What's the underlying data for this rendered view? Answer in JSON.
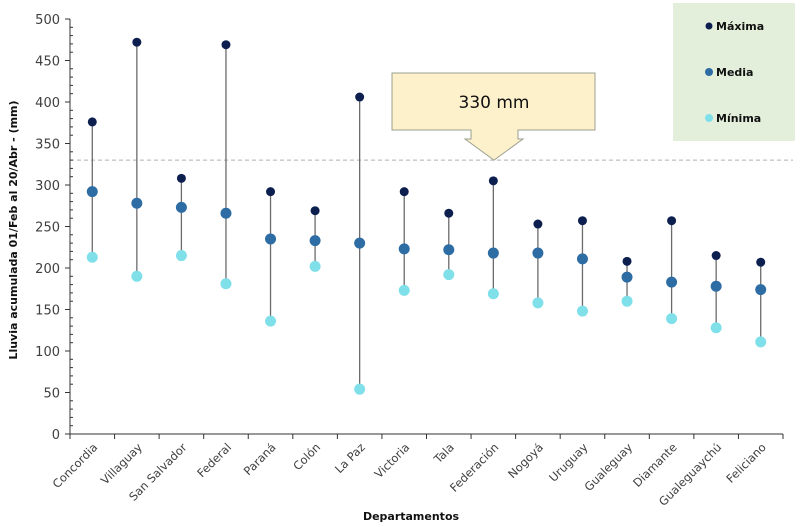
{
  "chart_data": {
    "type": "scatter",
    "subtype": "high-low-dot",
    "title": "",
    "xlabel": "Departamentos",
    "ylabel": "Lluvia acumulada 01/Feb al 20/Abr - (mm)",
    "ylim": [
      0,
      500
    ],
    "yticks": [
      0,
      50,
      100,
      150,
      200,
      250,
      300,
      350,
      400,
      450,
      500
    ],
    "grid": false,
    "legend_position": "top-right",
    "categories": [
      "Concordia",
      "Villaguay",
      "San Salvador",
      "Federal",
      "Paraná",
      "Colón",
      "La Paz",
      "Victoria",
      "Tala",
      "Federación",
      "Nogoyá",
      "Uruguay",
      "Gualeguay",
      "Diamante",
      "Gualeguaychú",
      "Feliciano"
    ],
    "series": [
      {
        "name": "Máxima",
        "color": "#0d1f4f",
        "values": [
          376,
          472,
          308,
          469,
          292,
          269,
          406,
          292,
          266,
          305,
          253,
          257,
          208,
          257,
          215,
          207
        ]
      },
      {
        "name": "Media",
        "color": "#2e6ca4",
        "values": [
          292,
          278,
          273,
          266,
          235,
          233,
          230,
          223,
          222,
          218,
          218,
          211,
          189,
          183,
          178,
          174
        ]
      },
      {
        "name": "Mínima",
        "color": "#7fe0ea",
        "values": [
          213,
          190,
          215,
          181,
          136,
          202,
          54,
          173,
          192,
          169,
          158,
          148,
          160,
          139,
          128,
          111
        ]
      }
    ],
    "reference_line": {
      "value": 330,
      "style": "dashed",
      "color": "#b0b0b0"
    },
    "annotation": {
      "text": "330 mm",
      "points_to": 330,
      "fill": "#fdf1cc",
      "border": "#9aa08f"
    },
    "legend_background": "#e3eedb"
  }
}
